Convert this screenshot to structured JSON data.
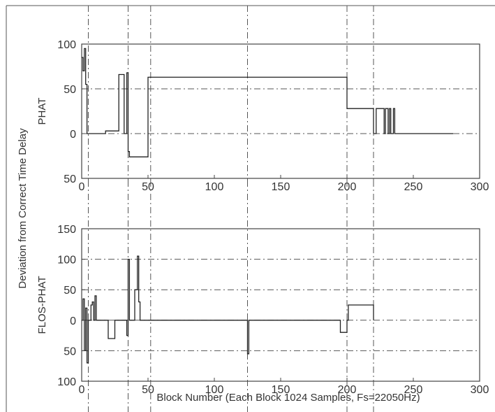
{
  "figure": {
    "ylabel_shared": "Deviation from Correct Time Delay",
    "xlabel": "Block Number (Each Block 1024 Samples, Fs=22050Hz)"
  },
  "chart_data": [
    {
      "type": "line",
      "ylabel": "PHAT",
      "xlabel": "",
      "xlim": [
        0,
        300
      ],
      "ylim": [
        -50,
        100
      ],
      "x_ticks": [
        0,
        50,
        100,
        150,
        200,
        250,
        300
      ],
      "y_ticks": [
        100,
        50,
        0,
        -50
      ],
      "y_tick_labels": [
        "100",
        "50",
        "0",
        "50"
      ],
      "hgrid_values": [
        50,
        0
      ],
      "vmarkers": [
        5,
        35,
        52,
        125,
        200,
        220
      ],
      "grid": true,
      "series": [
        {
          "x": [
            0,
            1,
            1,
            2,
            2,
            3,
            3,
            4,
            4,
            5,
            5,
            18,
            18,
            28,
            28,
            32,
            32,
            34,
            34,
            35,
            35,
            36,
            36,
            50,
            50,
            52,
            52,
            200,
            200,
            220,
            220,
            222,
            222,
            228,
            228,
            229,
            229,
            231,
            231,
            232,
            232,
            233,
            233,
            235,
            235,
            236,
            236,
            280
          ],
          "y": [
            85,
            85,
            70,
            70,
            95,
            95,
            55,
            55,
            0,
            0,
            0,
            0,
            3,
            3,
            66,
            66,
            0,
            0,
            68,
            68,
            -20,
            -20,
            -26,
            -26,
            63,
            63,
            63,
            63,
            28,
            28,
            0,
            0,
            28,
            28,
            0,
            0,
            28,
            28,
            0,
            0,
            28,
            28,
            0,
            0,
            28,
            28,
            0,
            0
          ]
        }
      ]
    },
    {
      "type": "line",
      "ylabel": "FLOS-PHAT",
      "xlabel": "",
      "xlim": [
        0,
        300
      ],
      "ylim": [
        -100,
        150
      ],
      "x_ticks": [
        0,
        50,
        100,
        150,
        200,
        250,
        300
      ],
      "y_ticks": [
        150,
        100,
        50,
        0,
        -50,
        -100
      ],
      "y_tick_labels": [
        "150",
        "100",
        "50",
        "0",
        "50",
        "100"
      ],
      "hgrid_values": [
        100,
        50,
        0,
        -50
      ],
      "vmarkers": [
        5,
        35,
        52,
        125,
        200,
        220
      ],
      "grid": true,
      "series": [
        {
          "x": [
            0,
            1,
            1,
            2,
            2,
            3,
            3,
            4,
            4,
            5,
            5,
            7,
            7,
            8,
            8,
            9,
            9,
            10,
            10,
            11,
            11,
            12,
            12,
            20,
            20,
            22,
            22,
            25,
            25,
            34,
            34,
            35,
            35,
            36,
            36,
            38,
            38,
            40,
            40,
            42,
            42,
            43,
            43,
            44,
            44,
            125,
            125,
            126,
            126,
            195,
            195,
            198,
            198,
            200,
            200,
            201,
            201,
            220,
            220
          ],
          "y": [
            0,
            0,
            35,
            35,
            -50,
            -50,
            20,
            20,
            -70,
            -70,
            0,
            0,
            25,
            25,
            30,
            30,
            0,
            0,
            40,
            40,
            0,
            0,
            0,
            0,
            -30,
            -30,
            -30,
            -30,
            0,
            0,
            -25,
            -25,
            100,
            100,
            0,
            0,
            0,
            0,
            50,
            50,
            105,
            105,
            30,
            30,
            0,
            0,
            -55,
            -55,
            0,
            0,
            -20,
            -20,
            -20,
            -20,
            0,
            0,
            25,
            25,
            0
          ]
        }
      ]
    }
  ]
}
